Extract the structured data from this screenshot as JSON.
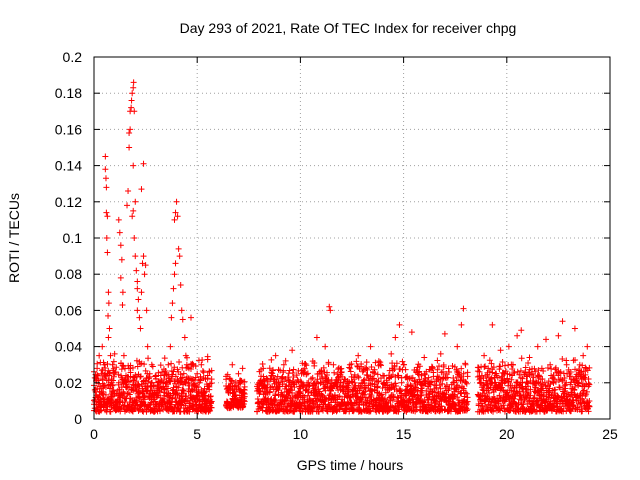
{
  "chart_data": {
    "type": "scatter",
    "title": "Day 293 of 2021, Rate Of TEC Index for receiver chpg",
    "xlabel": "GPS time / hours",
    "ylabel": "ROTI / TECUs",
    "xlim": [
      0,
      25
    ],
    "ylim": [
      0,
      0.2
    ],
    "xticks": [
      0,
      5,
      10,
      15,
      20,
      25
    ],
    "yticks": [
      0,
      0.02,
      0.04,
      0.06,
      0.08,
      0.1,
      0.12,
      0.14,
      0.16,
      0.18,
      0.2
    ],
    "xtick_labels": [
      "0",
      "5",
      "10",
      "15",
      "20",
      "25"
    ],
    "ytick_labels": [
      "0",
      "0.02",
      "0.04",
      "0.06",
      "0.08",
      "0.1",
      "0.12",
      "0.14",
      "0.16",
      "0.18",
      "0.2"
    ],
    "grid": true,
    "marker": "plus",
    "color": "#ff0000",
    "series": [
      {
        "name": "ROTI",
        "points": [
          [
            0.1,
            0.021
          ],
          [
            0.15,
            0.028
          ],
          [
            0.2,
            0.012
          ],
          [
            0.25,
            0.035
          ],
          [
            0.3,
            0.018
          ],
          [
            0.35,
            0.025
          ],
          [
            0.4,
            0.04
          ],
          [
            0.45,
            0.015
          ],
          [
            0.5,
            0.03
          ],
          [
            0.55,
            0.145
          ],
          [
            0.55,
            0.138
          ],
          [
            0.58,
            0.133
          ],
          [
            0.6,
            0.128
          ],
          [
            0.6,
            0.114
          ],
          [
            0.65,
            0.112
          ],
          [
            0.62,
            0.1
          ],
          [
            0.65,
            0.092
          ],
          [
            0.7,
            0.07
          ],
          [
            0.72,
            0.064
          ],
          [
            0.68,
            0.057
          ],
          [
            0.75,
            0.05
          ],
          [
            0.7,
            0.045
          ],
          [
            0.8,
            0.035
          ],
          [
            0.85,
            0.022
          ],
          [
            0.9,
            0.03
          ],
          [
            0.95,
            0.016
          ],
          [
            1.0,
            0.036
          ],
          [
            1.05,
            0.026
          ],
          [
            1.1,
            0.014
          ],
          [
            1.2,
            0.02
          ],
          [
            1.2,
            0.11
          ],
          [
            1.25,
            0.103
          ],
          [
            1.3,
            0.096
          ],
          [
            1.35,
            0.088
          ],
          [
            1.3,
            0.078
          ],
          [
            1.4,
            0.07
          ],
          [
            1.38,
            0.063
          ],
          [
            1.45,
            0.035
          ],
          [
            1.5,
            0.028
          ],
          [
            1.55,
            0.024
          ],
          [
            1.6,
            0.118
          ],
          [
            1.65,
            0.126
          ],
          [
            1.7,
            0.15
          ],
          [
            1.7,
            0.158
          ],
          [
            1.75,
            0.16
          ],
          [
            1.75,
            0.17
          ],
          [
            1.8,
            0.172
          ],
          [
            1.82,
            0.176
          ],
          [
            1.85,
            0.18
          ],
          [
            1.9,
            0.183
          ],
          [
            1.92,
            0.186
          ],
          [
            1.95,
            0.17
          ],
          [
            1.9,
            0.14
          ],
          [
            1.85,
            0.112
          ],
          [
            1.9,
            0.115
          ],
          [
            1.95,
            0.1
          ],
          [
            2.0,
            0.12
          ],
          [
            2.0,
            0.09
          ],
          [
            2.05,
            0.082
          ],
          [
            2.1,
            0.076
          ],
          [
            2.1,
            0.072
          ],
          [
            2.15,
            0.066
          ],
          [
            2.1,
            0.06
          ],
          [
            2.2,
            0.056
          ],
          [
            2.25,
            0.05
          ],
          [
            2.3,
            0.07
          ],
          [
            2.35,
            0.086
          ],
          [
            2.4,
            0.09
          ],
          [
            2.45,
            0.08
          ],
          [
            2.3,
            0.127
          ],
          [
            2.4,
            0.141
          ],
          [
            2.5,
            0.085
          ],
          [
            2.55,
            0.06
          ],
          [
            2.6,
            0.04
          ],
          [
            2.7,
            0.025
          ],
          [
            2.8,
            0.03
          ],
          [
            2.9,
            0.018
          ],
          [
            3.0,
            0.024
          ],
          [
            3.1,
            0.02
          ],
          [
            3.2,
            0.015
          ],
          [
            3.3,
            0.026
          ],
          [
            3.4,
            0.022
          ],
          [
            3.5,
            0.018
          ],
          [
            3.6,
            0.03
          ],
          [
            3.7,
            0.04
          ],
          [
            3.75,
            0.056
          ],
          [
            3.8,
            0.064
          ],
          [
            3.85,
            0.072
          ],
          [
            3.9,
            0.08
          ],
          [
            3.95,
            0.086
          ],
          [
            3.9,
            0.11
          ],
          [
            3.95,
            0.114
          ],
          [
            4.0,
            0.12
          ],
          [
            4.05,
            0.112
          ],
          [
            4.1,
            0.094
          ],
          [
            4.15,
            0.09
          ],
          [
            4.2,
            0.074
          ],
          [
            4.25,
            0.06
          ],
          [
            4.3,
            0.055
          ],
          [
            4.4,
            0.045
          ],
          [
            4.45,
            0.035
          ],
          [
            4.5,
            0.03
          ],
          [
            4.6,
            0.028
          ],
          [
            4.7,
            0.056
          ],
          [
            4.75,
            0.03
          ],
          [
            4.8,
            0.022
          ],
          [
            4.9,
            0.018
          ],
          [
            5.0,
            0.025
          ],
          [
            5.1,
            0.02
          ],
          [
            5.2,
            0.03
          ],
          [
            5.3,
            0.015
          ],
          [
            5.4,
            0.022
          ],
          [
            5.5,
            0.018
          ],
          [
            5.6,
            0.026
          ],
          [
            6.5,
            0.015
          ],
          [
            6.6,
            0.022
          ],
          [
            6.7,
            0.03
          ],
          [
            6.8,
            0.018
          ],
          [
            6.9,
            0.01
          ],
          [
            7.0,
            0.025
          ],
          [
            7.1,
            0.02
          ],
          [
            7.2,
            0.028
          ],
          [
            7.3,
            0.016
          ],
          [
            8.0,
            0.02
          ],
          [
            8.2,
            0.028
          ],
          [
            8.4,
            0.016
          ],
          [
            8.6,
            0.024
          ],
          [
            8.8,
            0.035
          ],
          [
            9.0,
            0.018
          ],
          [
            9.2,
            0.03
          ],
          [
            9.4,
            0.022
          ],
          [
            9.6,
            0.038
          ],
          [
            9.8,
            0.02
          ],
          [
            10.0,
            0.015
          ],
          [
            10.2,
            0.026
          ],
          [
            10.4,
            0.02
          ],
          [
            10.6,
            0.032
          ],
          [
            10.8,
            0.045
          ],
          [
            11.0,
            0.025
          ],
          [
            11.2,
            0.04
          ],
          [
            11.4,
            0.062
          ],
          [
            11.45,
            0.06
          ],
          [
            11.6,
            0.03
          ],
          [
            11.8,
            0.02
          ],
          [
            12.0,
            0.026
          ],
          [
            12.2,
            0.018
          ],
          [
            12.4,
            0.03
          ],
          [
            12.6,
            0.022
          ],
          [
            12.8,
            0.035
          ],
          [
            13.0,
            0.02
          ],
          [
            13.2,
            0.028
          ],
          [
            13.4,
            0.04
          ],
          [
            13.6,
            0.018
          ],
          [
            13.8,
            0.032
          ],
          [
            14.0,
            0.024
          ],
          [
            14.2,
            0.02
          ],
          [
            14.4,
            0.036
          ],
          [
            14.6,
            0.045
          ],
          [
            14.8,
            0.052
          ],
          [
            15.0,
            0.03
          ],
          [
            15.2,
            0.022
          ],
          [
            15.4,
            0.048
          ],
          [
            15.6,
            0.026
          ],
          [
            15.8,
            0.02
          ],
          [
            16.0,
            0.034
          ],
          [
            16.2,
            0.018
          ],
          [
            16.4,
            0.028
          ],
          [
            16.6,
            0.022
          ],
          [
            16.8,
            0.036
          ],
          [
            17.0,
            0.047
          ],
          [
            17.2,
            0.026
          ],
          [
            17.4,
            0.02
          ],
          [
            17.6,
            0.04
          ],
          [
            17.8,
            0.052
          ],
          [
            17.9,
            0.061
          ],
          [
            18.0,
            0.03
          ],
          [
            18.7,
            0.02
          ],
          [
            18.9,
            0.035
          ],
          [
            19.1,
            0.028
          ],
          [
            19.3,
            0.052
          ],
          [
            19.5,
            0.024
          ],
          [
            19.7,
            0.038
          ],
          [
            19.9,
            0.02
          ],
          [
            20.1,
            0.04
          ],
          [
            20.3,
            0.03
          ],
          [
            20.5,
            0.046
          ],
          [
            20.7,
            0.049
          ],
          [
            20.9,
            0.026
          ],
          [
            21.1,
            0.034
          ],
          [
            21.3,
            0.02
          ],
          [
            21.5,
            0.04
          ],
          [
            21.7,
            0.028
          ],
          [
            21.9,
            0.044
          ],
          [
            22.1,
            0.03
          ],
          [
            22.3,
            0.022
          ],
          [
            22.5,
            0.046
          ],
          [
            22.7,
            0.054
          ],
          [
            22.9,
            0.03
          ],
          [
            23.1,
            0.026
          ],
          [
            23.3,
            0.05
          ],
          [
            23.5,
            0.02
          ],
          [
            23.7,
            0.035
          ],
          [
            23.9,
            0.04
          ],
          [
            23.95,
            0.018
          ]
        ]
      }
    ],
    "density_bands": [
      {
        "x_start": 0.0,
        "x_end": 5.7,
        "y_low": 0.004,
        "y_high": 0.035
      },
      {
        "x_start": 6.4,
        "x_end": 7.3,
        "y_low": 0.006,
        "y_high": 0.026
      },
      {
        "x_start": 7.9,
        "x_end": 18.1,
        "y_low": 0.004,
        "y_high": 0.034
      },
      {
        "x_start": 18.6,
        "x_end": 24.0,
        "y_low": 0.004,
        "y_high": 0.035
      }
    ]
  }
}
